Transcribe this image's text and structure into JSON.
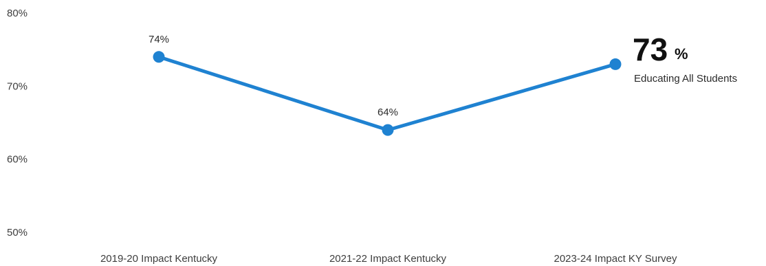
{
  "chart_data": {
    "type": "line",
    "categories": [
      "2019-20 Impact Kentucky",
      "2021-22 Impact Kentucky",
      "2023-24 Impact KY Survey"
    ],
    "series": [
      {
        "values": [
          74,
          64,
          73
        ],
        "color": "#1f82d1",
        "data_labels": [
          "74%",
          "64%",
          ""
        ]
      }
    ],
    "y_ticks": [
      "80%",
      "70%",
      "60%",
      "50%"
    ],
    "y_tick_values": [
      80,
      70,
      60,
      50
    ],
    "ylim": [
      50,
      80
    ],
    "grid": false,
    "callout": {
      "value": "73",
      "unit": "%",
      "label": "Educating All Students"
    }
  }
}
